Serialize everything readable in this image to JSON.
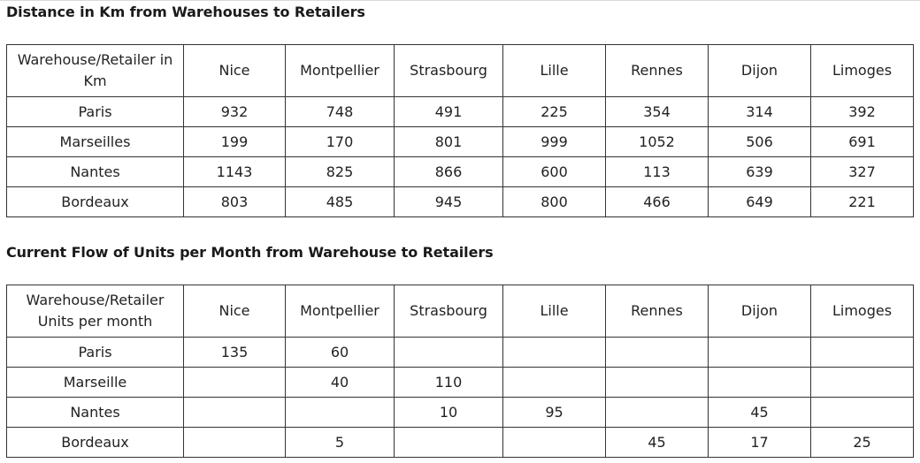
{
  "distance_section": {
    "title": "Distance in Km from Warehouses to Retailers",
    "corner": "Warehouse/Retailer in Km",
    "columns": [
      "Nice",
      "Montpellier",
      "Strasbourg",
      "Lille",
      "Rennes",
      "Dijon",
      "Limoges"
    ],
    "rows": [
      {
        "label": "Paris",
        "cells": [
          "932",
          "748",
          "491",
          "225",
          "354",
          "314",
          "392"
        ]
      },
      {
        "label": "Marseilles",
        "cells": [
          "199",
          "170",
          "801",
          "999",
          "1052",
          "506",
          "691"
        ]
      },
      {
        "label": "Nantes",
        "cells": [
          "1143",
          "825",
          "866",
          "600",
          "113",
          "639",
          "327"
        ]
      },
      {
        "label": "Bordeaux",
        "cells": [
          "803",
          "485",
          "945",
          "800",
          "466",
          "649",
          "221"
        ]
      }
    ]
  },
  "flow_section": {
    "title": "Current Flow of Units per Month from Warehouse to Retailers",
    "corner": "Warehouse/Retailer Units per month",
    "columns": [
      "Nice",
      "Montpellier",
      "Strasbourg",
      "Lille",
      "Rennes",
      "Dijon",
      "Limoges"
    ],
    "rows": [
      {
        "label": "Paris",
        "cells": [
          "135",
          "60",
          "",
          "",
          "",
          "",
          ""
        ]
      },
      {
        "label": "Marseille",
        "cells": [
          "",
          "40",
          "110",
          "",
          "",
          "",
          ""
        ]
      },
      {
        "label": "Nantes",
        "cells": [
          "",
          "",
          "10",
          "95",
          "",
          "45",
          ""
        ]
      },
      {
        "label": "Bordeaux",
        "cells": [
          "",
          "5",
          "",
          "",
          "45",
          "17",
          "25"
        ]
      }
    ]
  }
}
